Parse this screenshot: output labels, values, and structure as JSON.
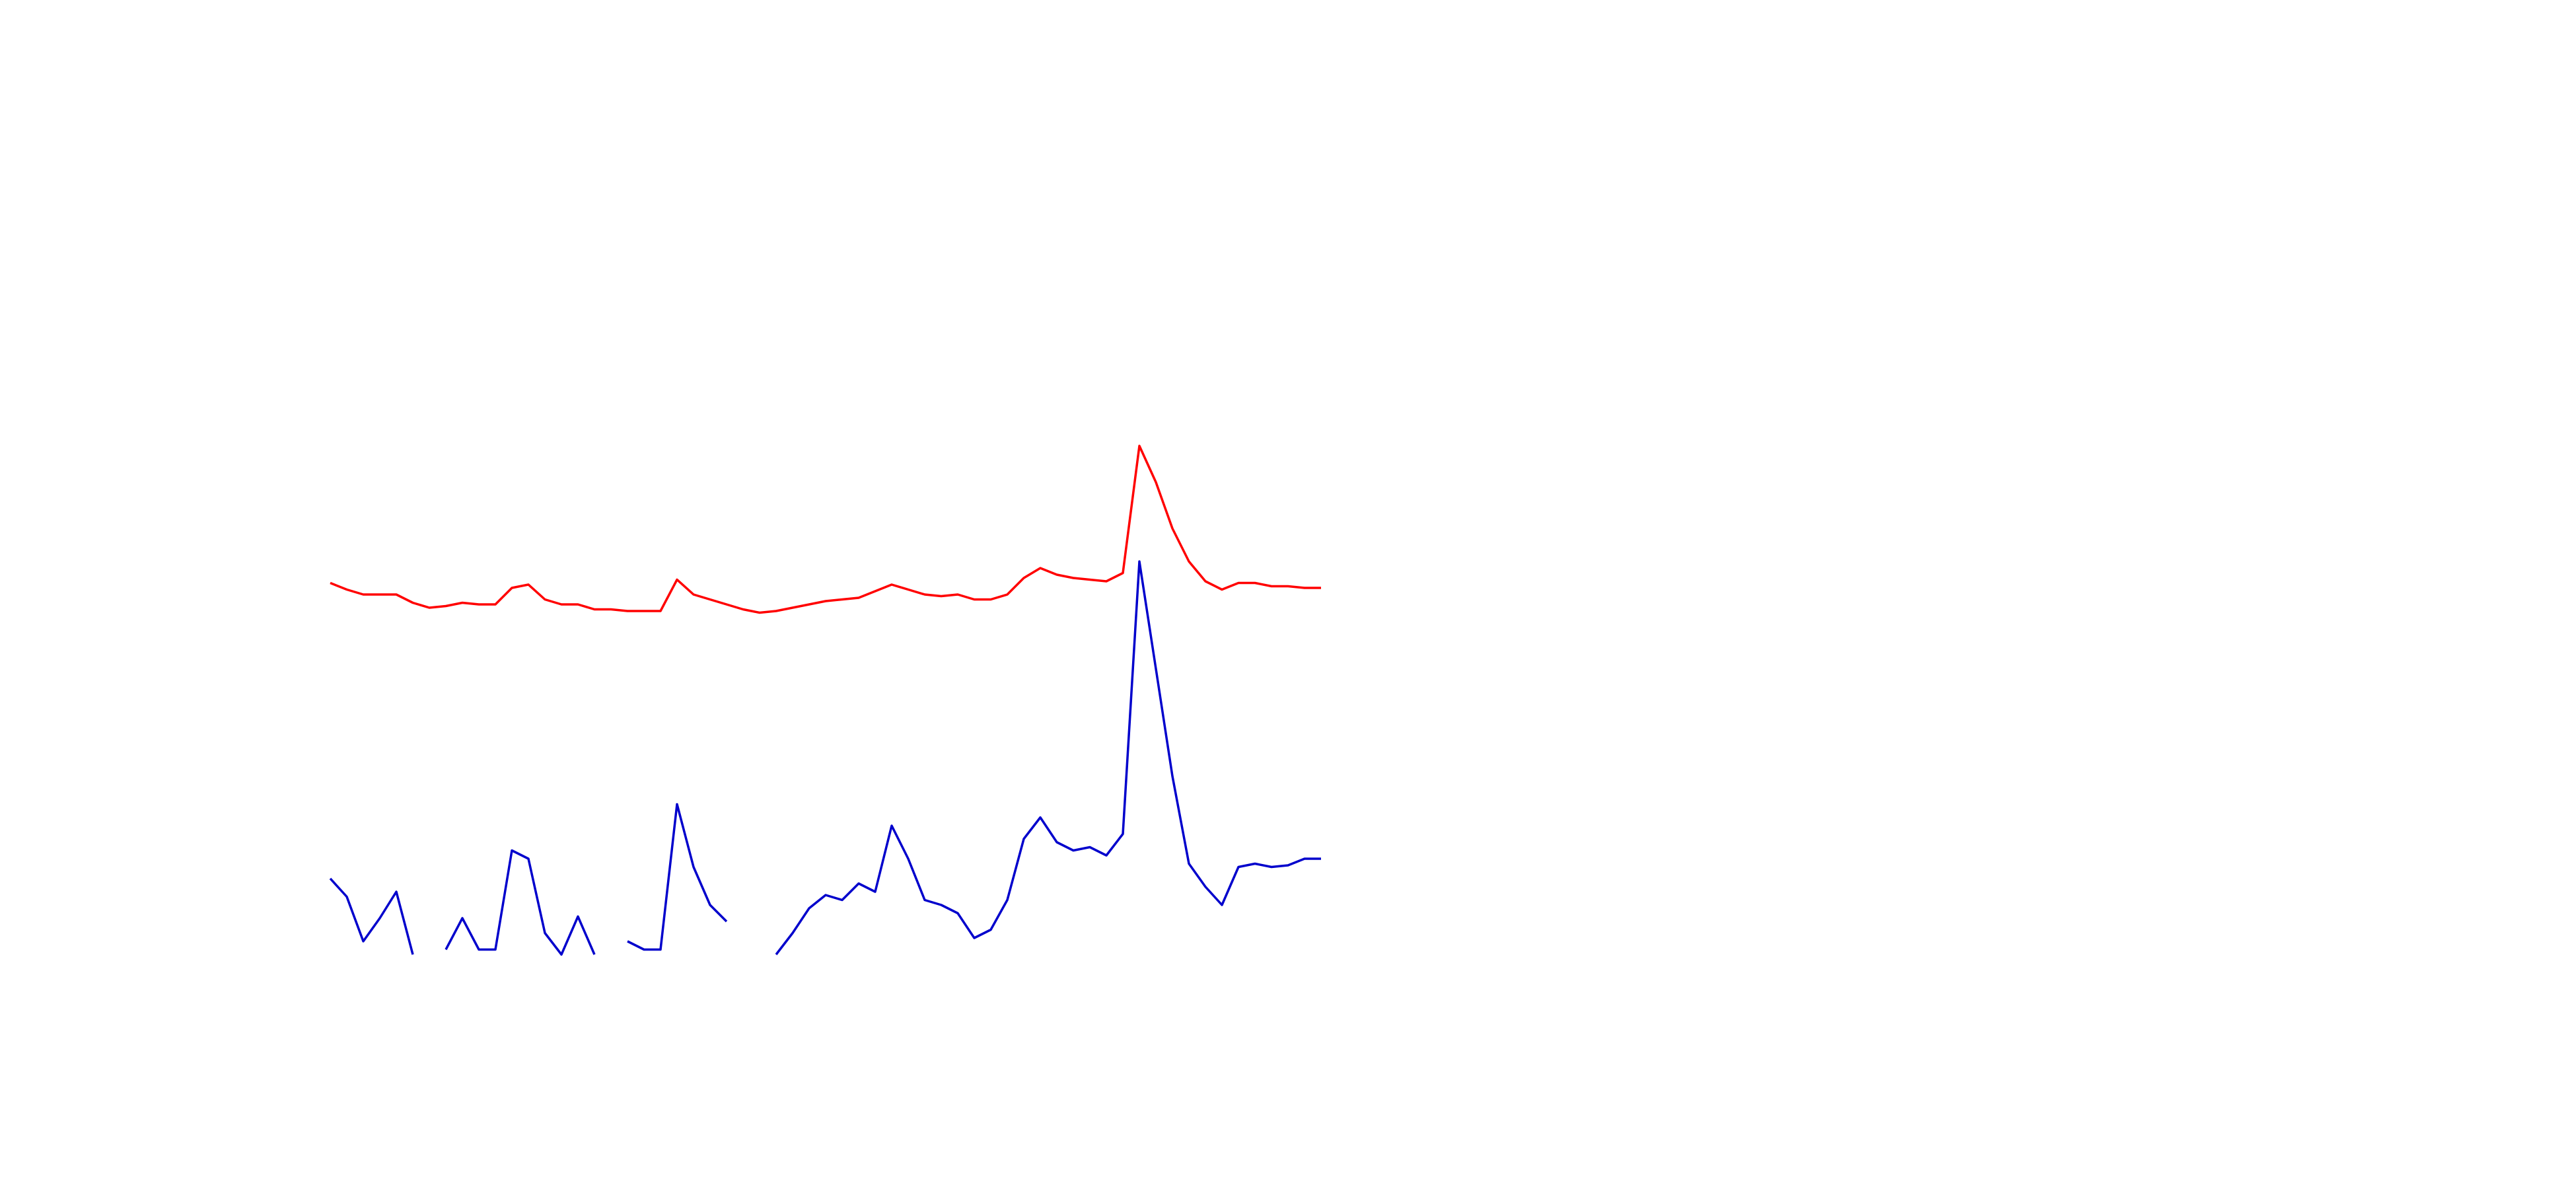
{
  "chart_data": {
    "type": "line",
    "ylim": [
      0,
      320
    ],
    "series": [
      {
        "color": "#ff0000",
        "values": [
          225,
          221,
          218,
          218,
          218,
          213,
          210,
          211,
          213,
          212,
          212,
          222,
          224,
          215,
          212,
          212,
          209,
          209,
          208,
          208,
          208,
          227,
          218,
          215,
          212,
          209,
          207,
          208,
          210,
          212,
          214,
          215,
          216,
          220,
          224,
          221,
          218,
          217,
          218,
          215,
          215,
          218,
          228,
          234,
          230,
          228,
          227,
          226,
          231,
          308,
          286,
          258,
          238,
          226,
          221,
          225,
          225,
          223,
          223,
          222,
          222
        ]
      },
      {
        "color": "#0000cc",
        "values": [
          46,
          35,
          8,
          22,
          38,
          0,
          null,
          3,
          22,
          3,
          3,
          63,
          58,
          13,
          0,
          23,
          0,
          null,
          8,
          3,
          3,
          91,
          53,
          30,
          20,
          null,
          null,
          0,
          13,
          28,
          36,
          33,
          43,
          38,
          78,
          58,
          33,
          30,
          25,
          10,
          15,
          33,
          70,
          83,
          68,
          63,
          65,
          60,
          73,
          238,
          173,
          108,
          55,
          41,
          30,
          53,
          55,
          53,
          54,
          58,
          58
        ]
      }
    ]
  }
}
